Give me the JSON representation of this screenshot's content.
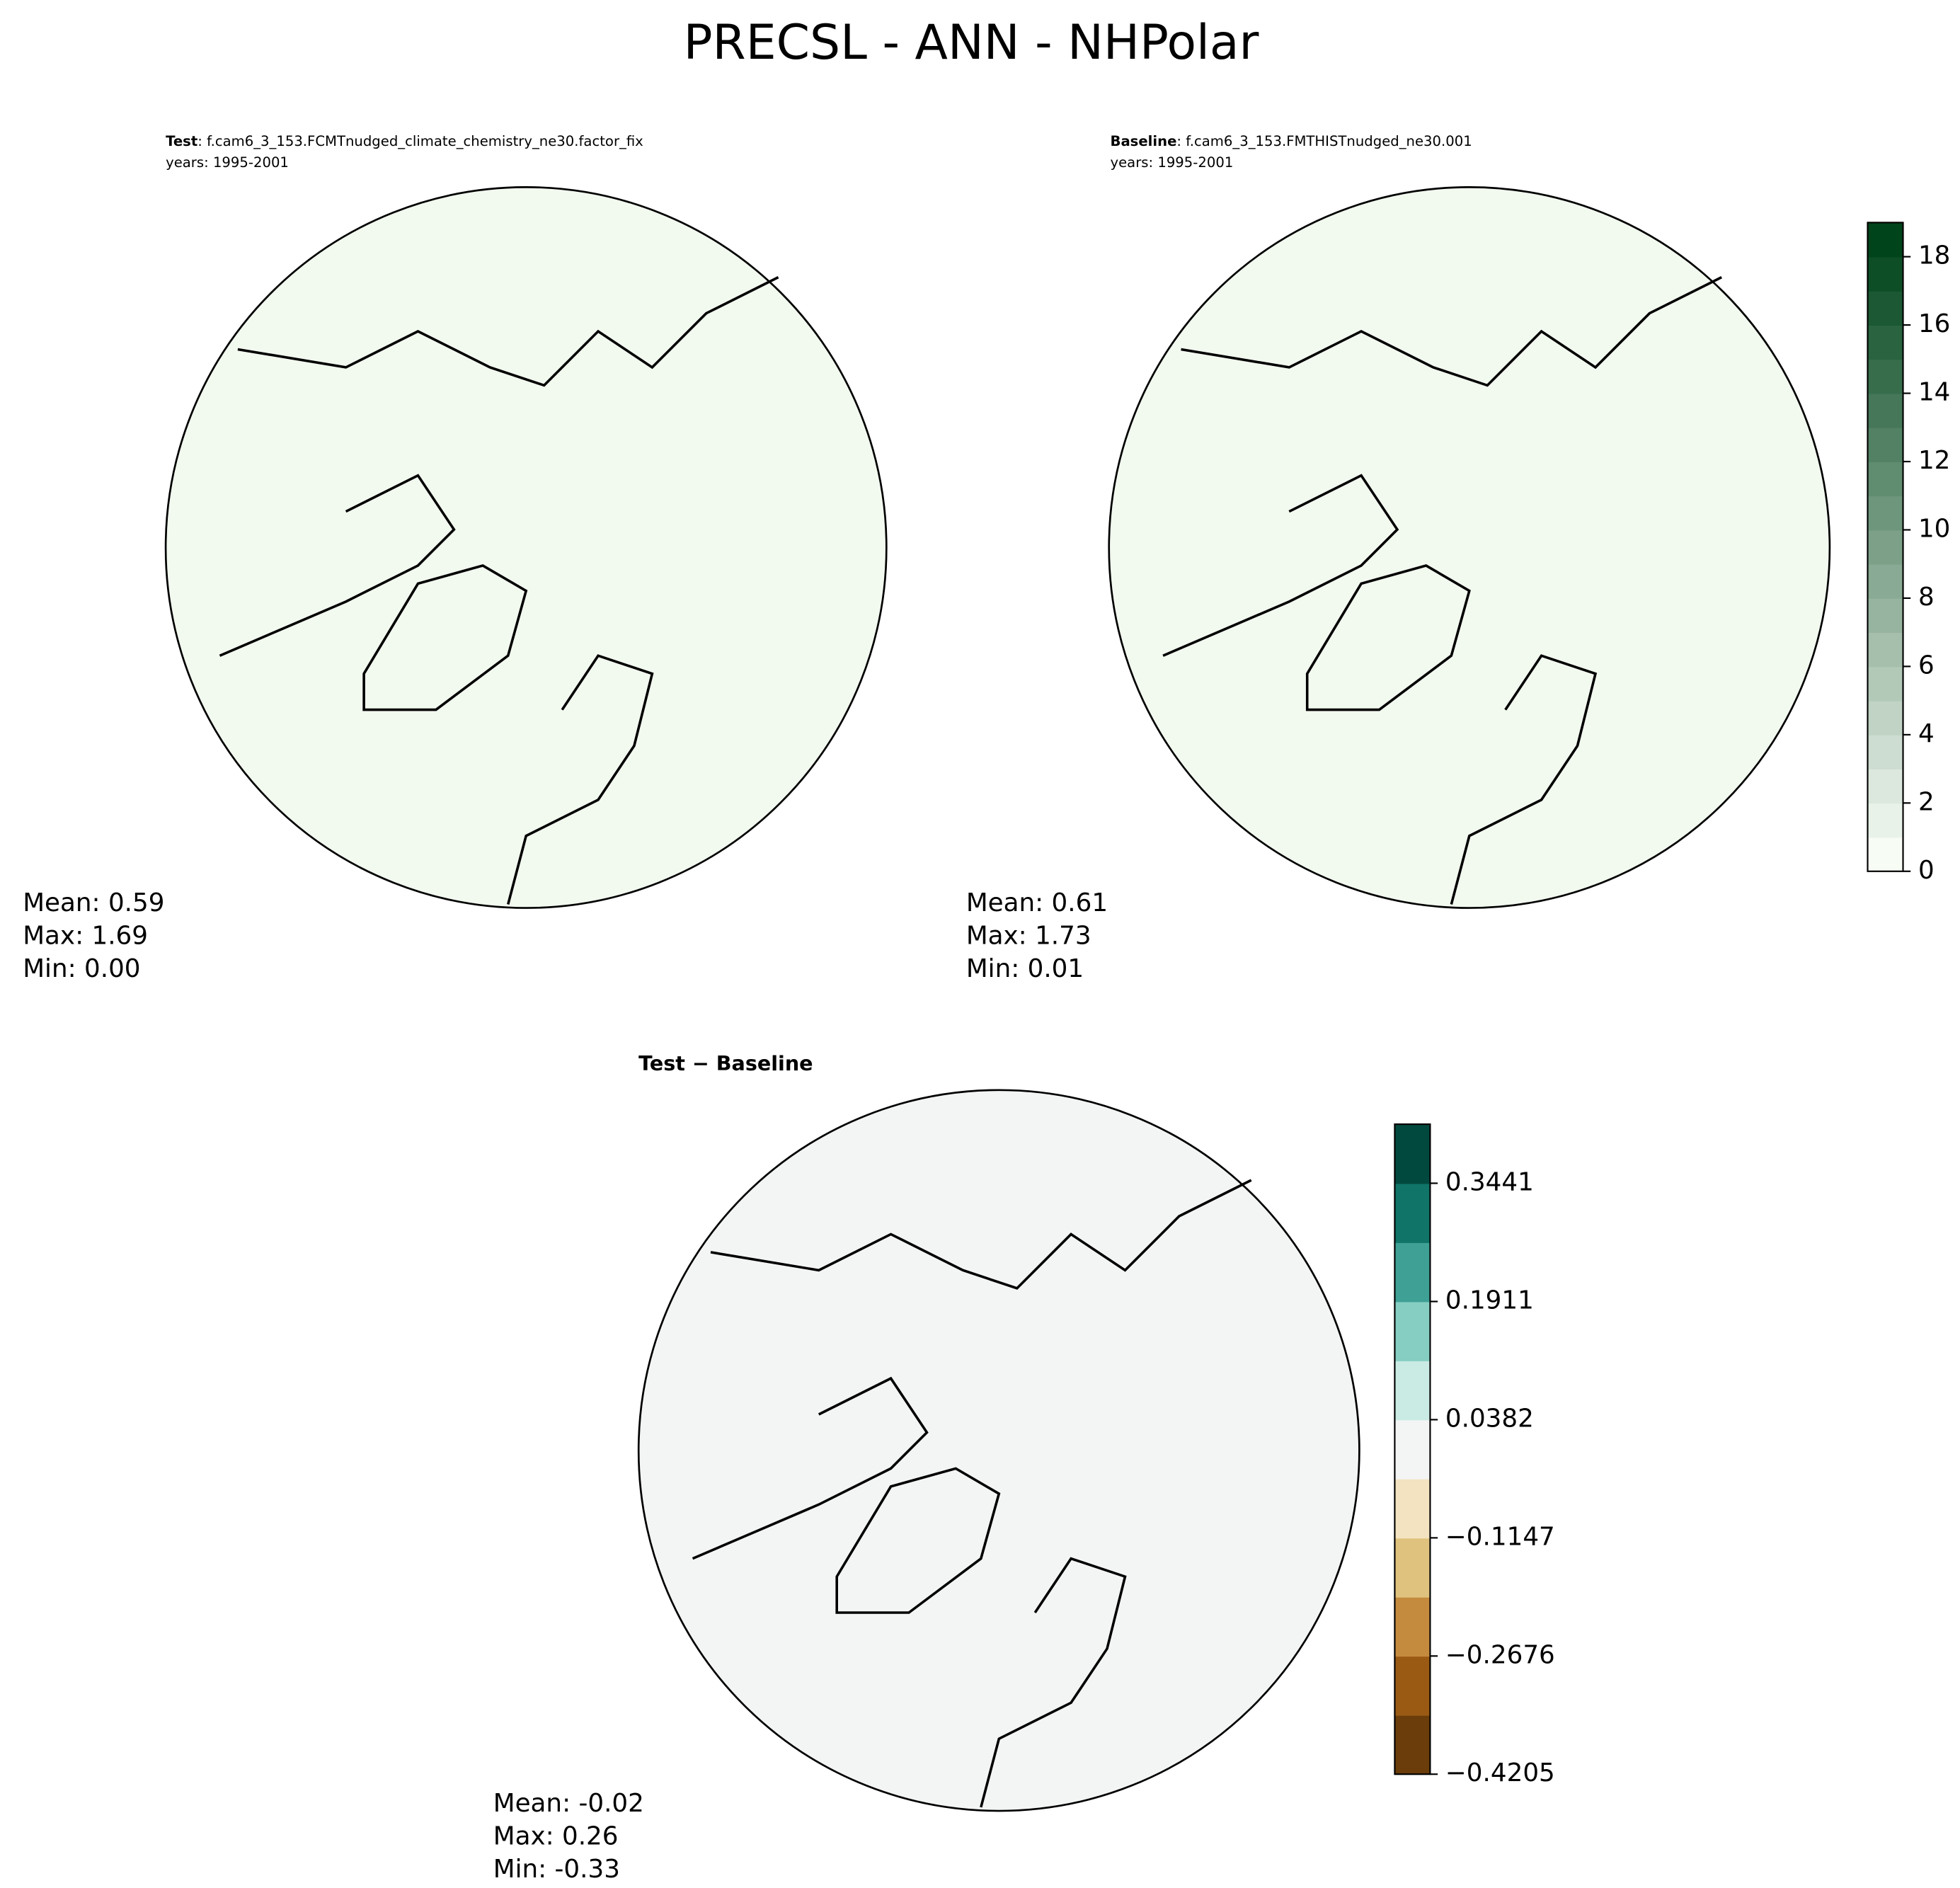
{
  "title": "PRECSL - ANN - NHPolar",
  "chart_data": [
    {
      "type": "polar-map",
      "subtitle": {
        "label": "Test",
        "case": ": f.cam6_3_153.FCMTnudged_climate_chemistry_ne30.factor_fix",
        "years": "years: 1995-2001"
      },
      "stats": [
        "Mean:  0.59",
        "Max:  1.69",
        "Min:  0.00"
      ],
      "fill": "#f2f9ef"
    },
    {
      "type": "polar-map",
      "subtitle": {
        "label": "Baseline",
        "case": ": f.cam6_3_153.FMTHISTnudged_ne30.001",
        "years": "years: 1995-2001"
      },
      "stats": [
        "Mean:  0.61",
        "Max:  1.73",
        "Min:  0.01"
      ],
      "fill": "#f2f9ef",
      "colorbar": {
        "ylim": [
          0,
          19
        ],
        "yticks": [
          0,
          2,
          4,
          6,
          8,
          10,
          12,
          14,
          16,
          18
        ],
        "bands": 19,
        "colors": [
          "#f7fcf5",
          "#00441b"
        ]
      }
    },
    {
      "type": "polar-map",
      "subtitle": {
        "label": "Test − Baseline"
      },
      "stats": [
        "Mean: -0.02",
        "Max:  0.26",
        "Min: -0.33"
      ],
      "fill": "#f3f5f4",
      "colorbar": {
        "ylim": [
          -0.4205,
          0.4205
        ],
        "yticks": [
          {
            "value": -0.4205,
            "label": "−0.4205"
          },
          {
            "value": -0.2676,
            "label": "−0.2676"
          },
          {
            "value": -0.1147,
            "label": "−0.1147"
          },
          0.0382,
          0.1911,
          0.3441
        ],
        "bands": 11,
        "colors": [
          "#6a3d0a",
          "#9a5a14",
          "#c48a3e",
          "#dfc27d",
          "#f4e3c0",
          "#f3f5f4",
          "#c9ebe4",
          "#85cec1",
          "#3fa095",
          "#107468",
          "#01493f"
        ]
      }
    }
  ]
}
